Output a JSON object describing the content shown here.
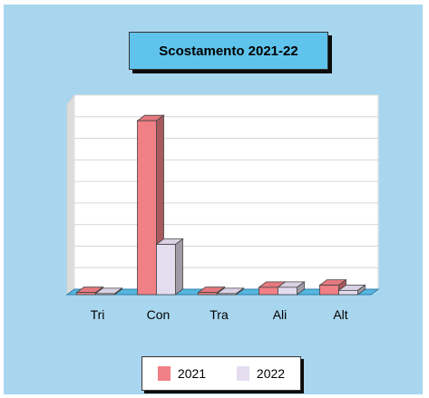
{
  "chart_data": {
    "type": "bar",
    "title": "Scostamento 2021-22",
    "categories": [
      "Tri",
      "Con",
      "Tra",
      "Ali",
      "Alt"
    ],
    "series": [
      {
        "name": "2021",
        "color": "#f07f86",
        "values": [
          0.1,
          8.3,
          0.1,
          0.35,
          0.45
        ]
      },
      {
        "name": "2022",
        "color": "#e4dcef",
        "values": [
          0.05,
          2.4,
          0.05,
          0.35,
          0.2
        ]
      }
    ],
    "ylim": [
      0,
      9
    ],
    "grid": true,
    "legend": "bottom"
  }
}
